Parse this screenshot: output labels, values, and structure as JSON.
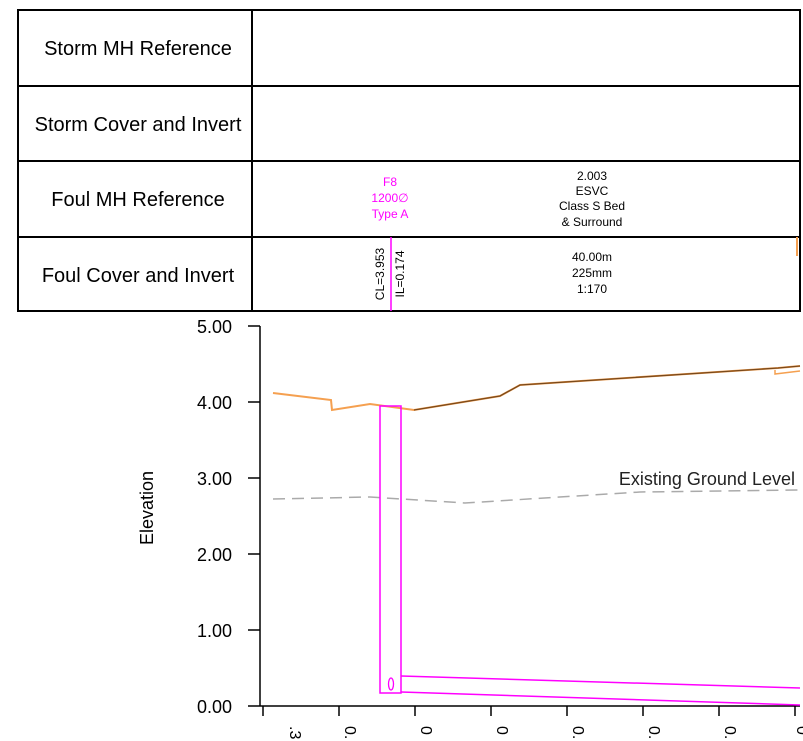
{
  "table": {
    "rows": [
      {
        "label": "Storm MH Reference"
      },
      {
        "label": "Storm Cover and Invert"
      },
      {
        "label": "Foul MH Reference"
      },
      {
        "label": "Foul Cover and Invert"
      }
    ],
    "manhole": {
      "ref": "F8",
      "size": "1200∅",
      "type": "Type A",
      "cover": "CL=3.953",
      "invert": "IL=0.174"
    },
    "pipe": {
      "ref": "2.003",
      "material": "ESVC",
      "bed": "Class S Bed",
      "surround": "& Surround",
      "length": "40.00m",
      "diameter": "225mm",
      "gradient": "1:170"
    }
  },
  "profile": {
    "ylabel": "Elevation",
    "y_ticks": [
      "5.00",
      "4.00",
      "3.00",
      "2.00",
      "1.00",
      "0.00"
    ],
    "x_tick_fragments": [
      ".3",
      "0.",
      "0",
      "0",
      "0.",
      "0.",
      "0.",
      "0"
    ],
    "existing_ground_label": "Existing Ground Level",
    "colors": {
      "proposed": "#f5a050",
      "proposed_dark": "#7a4a1c",
      "existing": "#aaaaaa",
      "manhole": "#ff00ff",
      "grid": "#000000"
    }
  }
}
